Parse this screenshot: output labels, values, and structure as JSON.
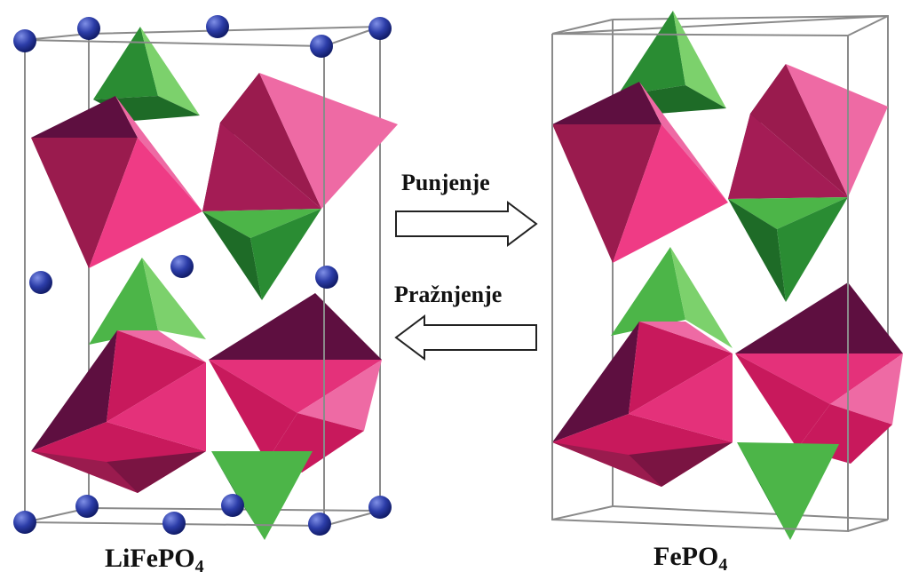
{
  "labels": {
    "left_structure": "LiFePO",
    "left_subscript": "4",
    "right_structure": "FePO",
    "right_subscript": "4",
    "charge": "Punjenje",
    "discharge": "Pražnjenje"
  },
  "colors": {
    "octa_dark": "#5e0f40",
    "octa_mid": "#9a1b4e",
    "octa_main": "#c8195c",
    "octa_bright": "#ef3b85",
    "octa_light": "#ee6aa4",
    "tetra_light": "#7cd16c",
    "tetra_mid": "#4cb548",
    "tetra_dark": "#2a8c33",
    "tetra_darkest": "#1e6b27",
    "lithium": "#2c3da8",
    "cell_edge": "#8a8a8a"
  }
}
